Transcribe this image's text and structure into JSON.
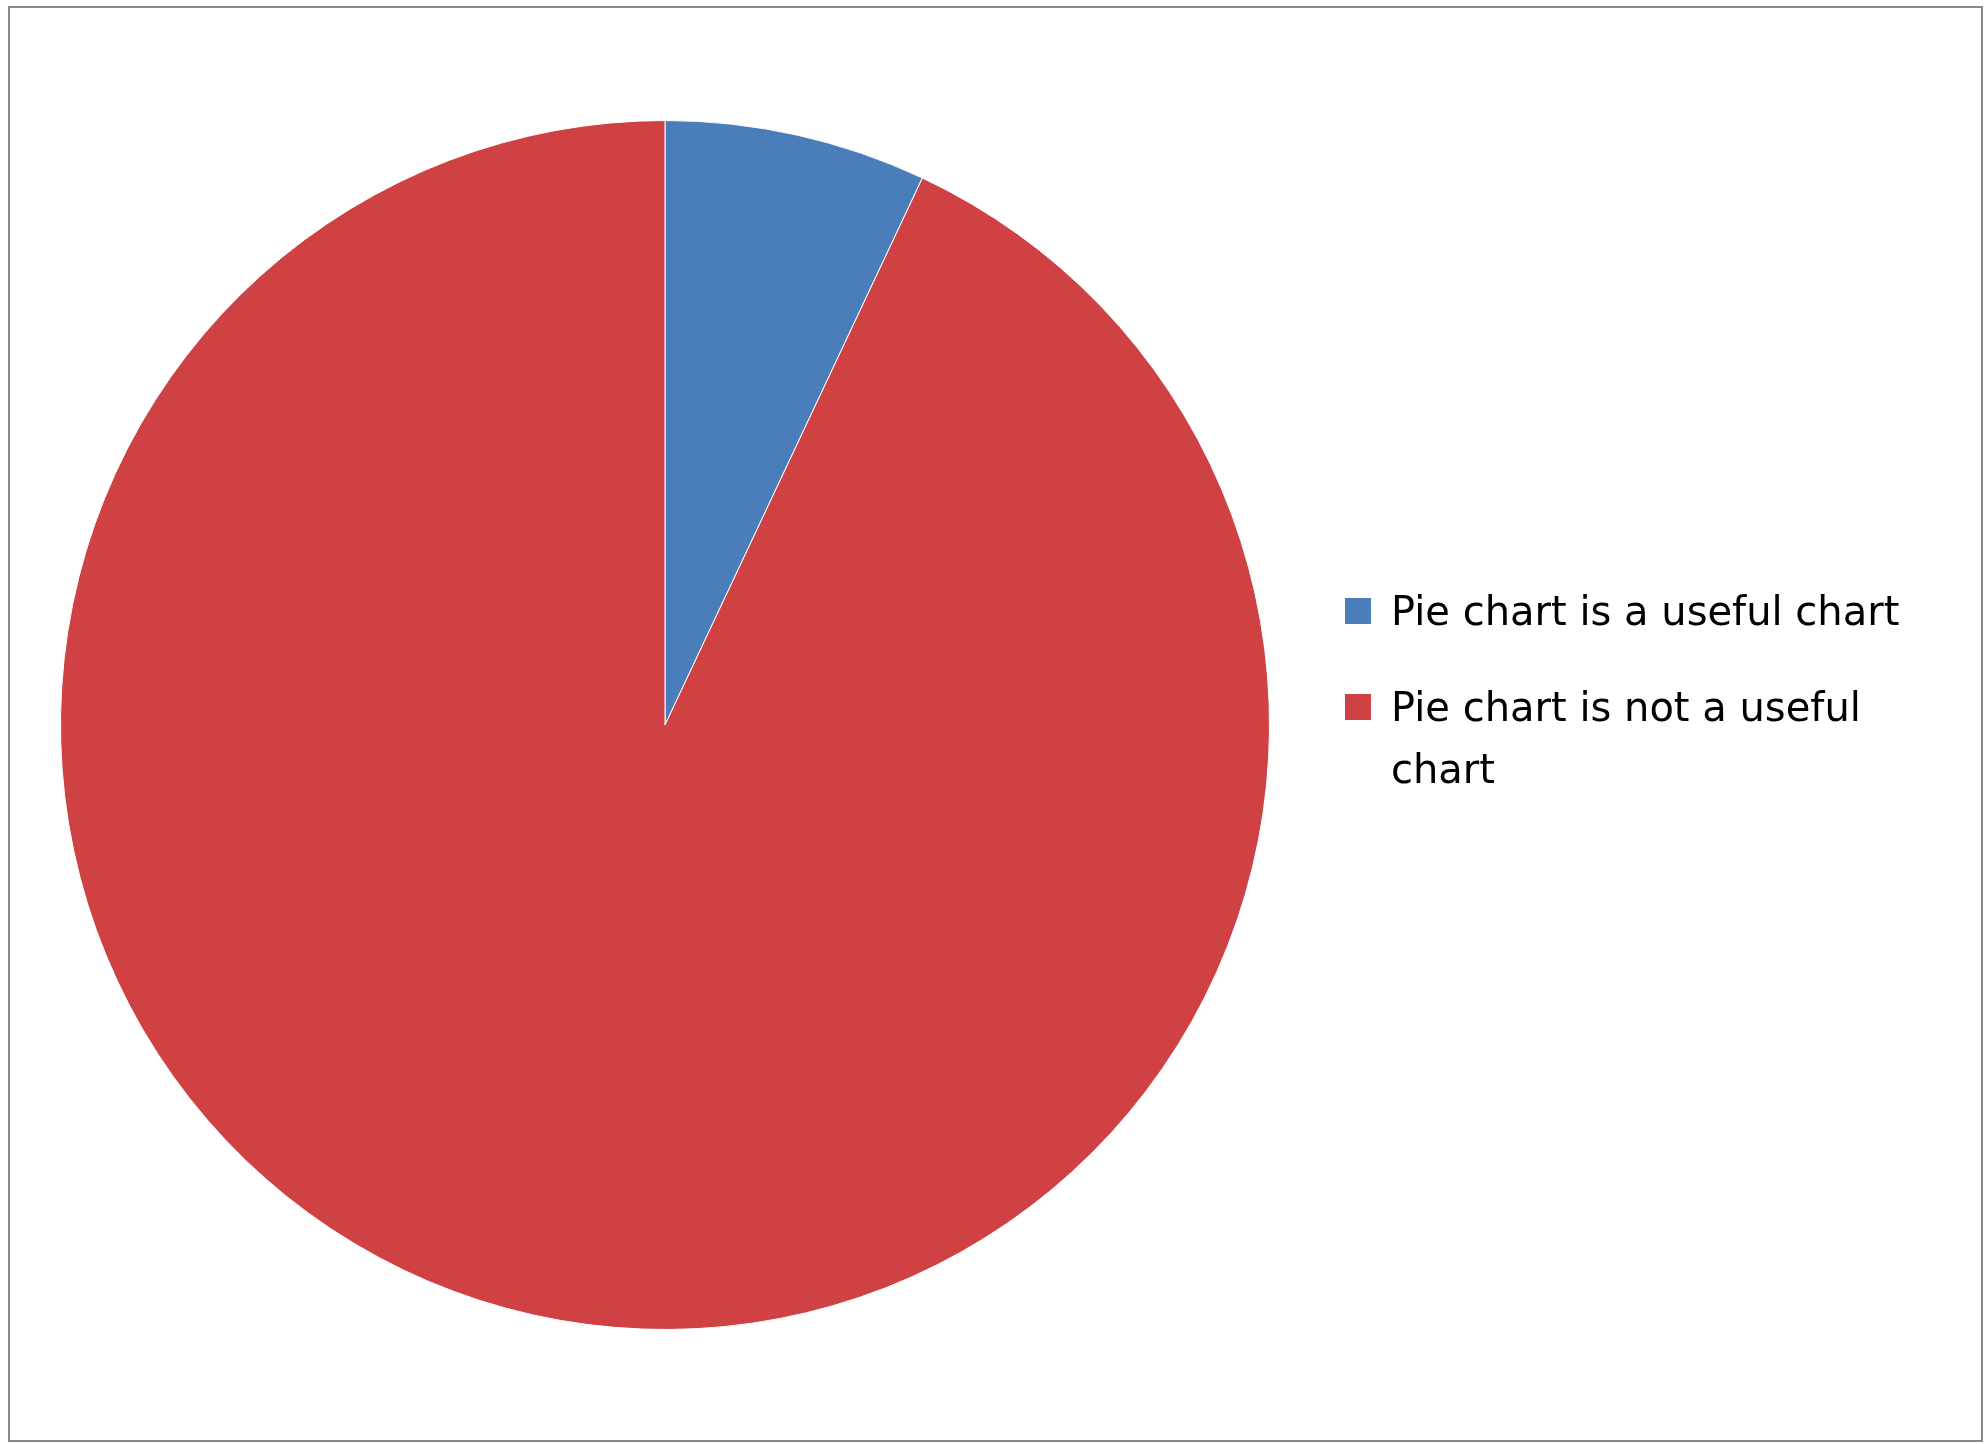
{
  "chart_data": {
    "type": "pie",
    "categories": [
      "Pie chart is a useful chart",
      "Pie chart is not a useful chart"
    ],
    "values": [
      7,
      93
    ],
    "colors": [
      "#4a7ebb",
      "#d04143"
    ],
    "legend": "right"
  }
}
